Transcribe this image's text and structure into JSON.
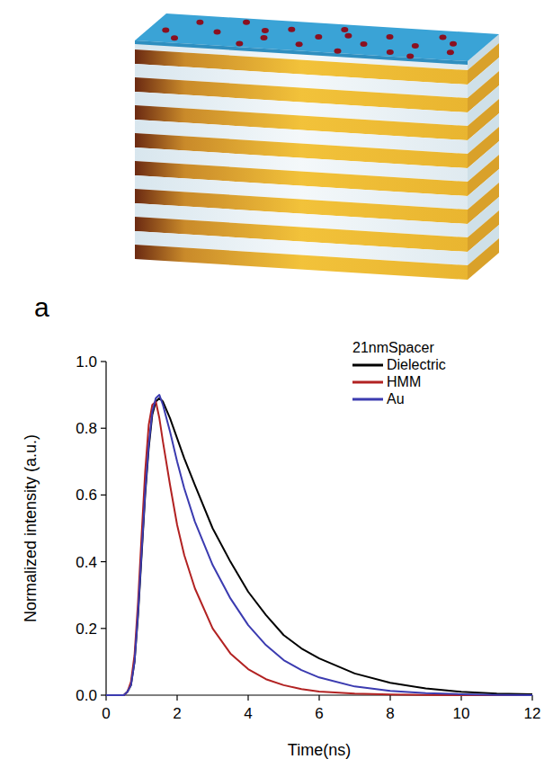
{
  "chart_data": {
    "type": "line",
    "panel_label": "a",
    "legend_title": "21nmSpacer",
    "legend": "upper right",
    "x_label": "Time(ns)",
    "y_label": "Normalized intensity (a.u.)",
    "xlim": [
      0,
      12
    ],
    "xticks": [
      0,
      2,
      4,
      6,
      8,
      10,
      12
    ],
    "ylim": [
      0,
      1
    ],
    "yticks": [
      {
        "value": 0,
        "label": "0.0"
      },
      {
        "value": 0.2,
        "label": "0.2"
      },
      {
        "value": 0.4,
        "label": "0.4"
      },
      {
        "value": 0.6,
        "label": "0.6"
      },
      {
        "value": 0.8,
        "label": "0.8"
      },
      {
        "value": 1,
        "label": "1.0"
      }
    ],
    "x": [
      0,
      0.5,
      0.6,
      0.7,
      0.8,
      0.9,
      1.0,
      1.1,
      1.2,
      1.3,
      1.4,
      1.5,
      1.6,
      1.8,
      2.0,
      2.2,
      2.5,
      3,
      3.5,
      4,
      4.5,
      5,
      5.5,
      6,
      7,
      8,
      9,
      10,
      11,
      12
    ],
    "series": [
      {
        "name": "Dielectric",
        "color": "#000000",
        "values": [
          0,
          0,
          0.01,
          0.03,
          0.1,
          0.24,
          0.42,
          0.6,
          0.74,
          0.84,
          0.88,
          0.89,
          0.88,
          0.83,
          0.77,
          0.71,
          0.63,
          0.5,
          0.4,
          0.31,
          0.24,
          0.18,
          0.14,
          0.11,
          0.065,
          0.037,
          0.02,
          0.01,
          0.005,
          0.003
        ]
      },
      {
        "name": "HMM",
        "color": "#b22222",
        "values": [
          0,
          0,
          0.01,
          0.04,
          0.12,
          0.28,
          0.48,
          0.67,
          0.81,
          0.87,
          0.88,
          0.83,
          0.76,
          0.63,
          0.51,
          0.42,
          0.32,
          0.2,
          0.125,
          0.078,
          0.048,
          0.03,
          0.018,
          0.011,
          0.005,
          0.002,
          0.001,
          0,
          0,
          0
        ]
      },
      {
        "name": "Au",
        "color": "#3b3bb0",
        "values": [
          0,
          0,
          0.01,
          0.03,
          0.1,
          0.25,
          0.43,
          0.61,
          0.75,
          0.85,
          0.89,
          0.9,
          0.87,
          0.79,
          0.7,
          0.62,
          0.52,
          0.39,
          0.29,
          0.21,
          0.15,
          0.105,
          0.075,
          0.053,
          0.026,
          0.013,
          0.006,
          0.003,
          0.001,
          0
        ]
      }
    ]
  }
}
